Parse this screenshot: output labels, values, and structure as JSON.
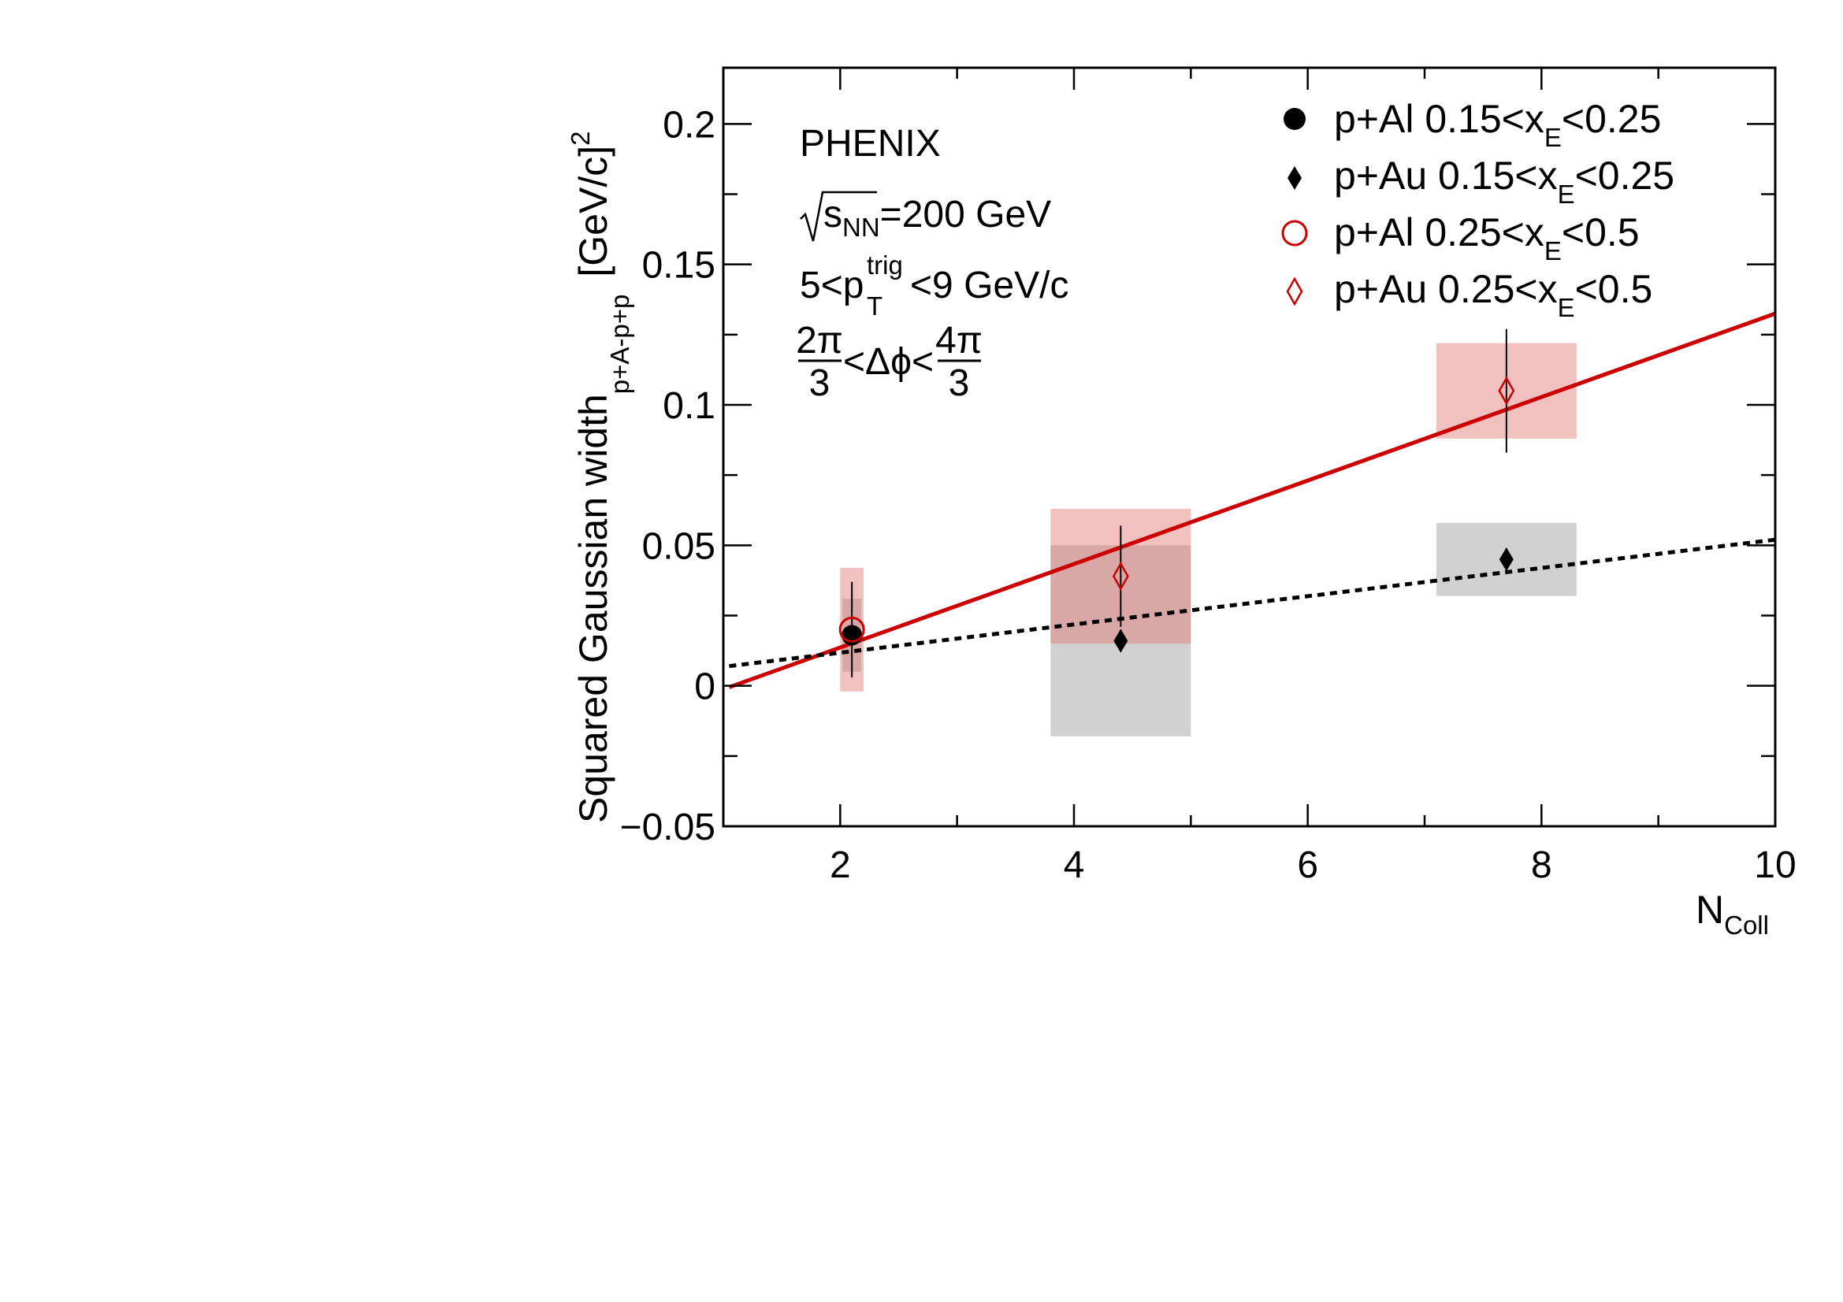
{
  "chart_data": {
    "type": "scatter",
    "xlim": [
      1,
      10
    ],
    "ylim": [
      -0.05,
      0.22
    ],
    "x_ticks": [
      2,
      4,
      6,
      8,
      10
    ],
    "x_tick_labels": [
      "2",
      "4",
      "6",
      "8",
      "10"
    ],
    "y_ticks": [
      -0.05,
      0,
      0.05,
      0.1,
      0.15,
      0.2
    ],
    "y_tick_labels": [
      "−0.05",
      "0",
      "0.05",
      "0.1",
      "0.15",
      "0.2"
    ],
    "xlabel": {
      "main": "N",
      "sub": "Coll"
    },
    "ylabel": {
      "main": "Squared Gaussian width",
      "sub": "p+A-p+p",
      "unit": "[GeV/c]",
      "sup": "2"
    },
    "grid": false,
    "legend_placement": "top-right",
    "annotations": {
      "experiment": "PHENIX",
      "energy": {
        "sqrt": "s",
        "sub": "NN",
        "rest": "=200 GeV"
      },
      "trigger": {
        "pre": "5<p",
        "sup": "trig",
        "sub": "T",
        "post": "<9 GeV/c"
      },
      "dphi": {
        "num1": "2π",
        "den1": "3",
        "mid": "<Δϕ<",
        "num2": "4π",
        "den2": "3"
      }
    },
    "series": [
      {
        "name": "p+Al 0.15<x_E<0.25",
        "legend": {
          "pre": "p+Al 0.15<x",
          "sub": "E",
          "post": "<0.25"
        },
        "marker": "filled-circle",
        "color": "#000000",
        "sys_color": "#999999",
        "points": [
          {
            "x": 2.1,
            "y": 0.018,
            "err": 0.0,
            "sys": 0.013,
            "sys_halfwidth": 0.08
          }
        ]
      },
      {
        "name": "p+Au 0.15<x_E<0.25",
        "legend": {
          "pre": "p+Au 0.15<x",
          "sub": "E",
          "post": "<0.25"
        },
        "marker": "filled-diamond",
        "color": "#000000",
        "sys_color": "#999999",
        "points": [
          {
            "x": 4.4,
            "y": 0.016,
            "err": 0.004,
            "sys": 0.034,
            "sys_halfwidth": 0.6
          },
          {
            "x": 7.7,
            "y": 0.045,
            "err": 0.004,
            "sys": 0.013,
            "sys_halfwidth": 0.6
          }
        ]
      },
      {
        "name": "p+Al 0.25<x_E<0.5",
        "legend": {
          "pre": "p+Al 0.25<x",
          "sub": "E",
          "post": "<0.5"
        },
        "marker": "open-circle",
        "color": "#cc0000",
        "sys_color": "#e57373",
        "points": [
          {
            "x": 2.1,
            "y": 0.02,
            "err": 0.017,
            "sys": 0.022,
            "sys_halfwidth": 0.1
          }
        ]
      },
      {
        "name": "p+Au 0.25<x_E<0.5",
        "legend": {
          "pre": "p+Au 0.25<x",
          "sub": "E",
          "post": "<0.5"
        },
        "marker": "open-diamond",
        "color": "#cc0000",
        "sys_color": "#e57373",
        "points": [
          {
            "x": 4.4,
            "y": 0.039,
            "err": 0.018,
            "sys": 0.024,
            "sys_halfwidth": 0.6
          },
          {
            "x": 7.7,
            "y": 0.105,
            "err": 0.022,
            "sys": 0.017,
            "sys_halfwidth": 0.6
          }
        ]
      }
    ],
    "fits": [
      {
        "style": "solid",
        "color": "#cc0000",
        "x": [
          1.05,
          10
        ],
        "y": [
          -0.0005,
          0.1325
        ]
      },
      {
        "style": "dotted",
        "color": "#000000",
        "x": [
          1.05,
          10
        ],
        "y": [
          0.007,
          0.052
        ]
      }
    ]
  }
}
